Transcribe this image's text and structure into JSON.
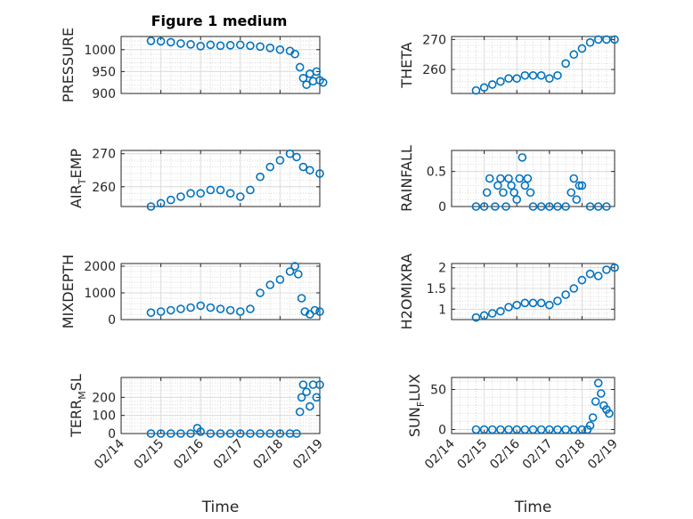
{
  "figure": {
    "title": "Figure 1 medium",
    "marker_color": "#0072BD"
  },
  "chart_data": [
    {
      "type": "scatter",
      "ylabel": "PRESSURE",
      "ylim": [
        900,
        1030
      ],
      "yticks": [
        900,
        950,
        1000
      ],
      "xlim": [
        "02/14",
        "02/19"
      ],
      "xticks": [],
      "series": [
        {
          "points": [
            [
              "02/14 18:00",
              1020
            ],
            [
              "02/15 00:00",
              1019
            ],
            [
              "02/15 06:00",
              1017
            ],
            [
              "02/15 12:00",
              1014
            ],
            [
              "02/15 18:00",
              1012
            ],
            [
              "02/16 00:00",
              1008
            ],
            [
              "02/16 06:00",
              1011
            ],
            [
              "02/16 12:00",
              1009
            ],
            [
              "02/16 18:00",
              1010
            ],
            [
              "02/17 00:00",
              1011
            ],
            [
              "02/17 06:00",
              1009
            ],
            [
              "02/17 12:00",
              1007
            ],
            [
              "02/17 18:00",
              1004
            ],
            [
              "02/18 00:00",
              1000
            ],
            [
              "02/18 06:00",
              997
            ],
            [
              "02/18 09:00",
              990
            ],
            [
              "02/18 12:00",
              960
            ],
            [
              "02/18 14:00",
              935
            ],
            [
              "02/18 16:00",
              920
            ],
            [
              "02/18 18:00",
              945
            ],
            [
              "02/18 20:00",
              928
            ],
            [
              "02/18 22:00",
              950
            ],
            [
              "02/19 00:00",
              930
            ],
            [
              "02/19 02:00",
              925
            ]
          ]
        }
      ]
    },
    {
      "type": "scatter",
      "ylabel": "THETA",
      "ylim": [
        252,
        271
      ],
      "yticks": [
        260,
        270
      ],
      "xlim": [
        "02/14",
        "02/19"
      ],
      "xticks": [],
      "series": [
        {
          "points": [
            [
              "02/14 18:00",
              253
            ],
            [
              "02/15 00:00",
              254
            ],
            [
              "02/15 06:00",
              255
            ],
            [
              "02/15 12:00",
              256
            ],
            [
              "02/15 18:00",
              257
            ],
            [
              "02/16 00:00",
              257
            ],
            [
              "02/16 06:00",
              258
            ],
            [
              "02/16 12:00",
              258
            ],
            [
              "02/16 18:00",
              258
            ],
            [
              "02/17 00:00",
              257
            ],
            [
              "02/17 06:00",
              258
            ],
            [
              "02/17 12:00",
              262
            ],
            [
              "02/17 18:00",
              265
            ],
            [
              "02/18 00:00",
              267
            ],
            [
              "02/18 06:00",
              269
            ],
            [
              "02/18 12:00",
              270
            ],
            [
              "02/18 18:00",
              270
            ],
            [
              "02/19 00:00",
              270
            ]
          ]
        }
      ]
    },
    {
      "type": "scatter",
      "ylabel": "AIR",
      "ylabel_sub": "T",
      "ylabel_tail": "EMP",
      "ylim": [
        254,
        271
      ],
      "yticks": [
        260,
        270
      ],
      "xlim": [
        "02/14",
        "02/19"
      ],
      "xticks": [],
      "series": [
        {
          "points": [
            [
              "02/14 18:00",
              254
            ],
            [
              "02/15 00:00",
              255
            ],
            [
              "02/15 06:00",
              256
            ],
            [
              "02/15 12:00",
              257
            ],
            [
              "02/15 18:00",
              258
            ],
            [
              "02/16 00:00",
              258
            ],
            [
              "02/16 06:00",
              259
            ],
            [
              "02/16 12:00",
              259
            ],
            [
              "02/16 18:00",
              258
            ],
            [
              "02/17 00:00",
              257
            ],
            [
              "02/17 06:00",
              259
            ],
            [
              "02/17 12:00",
              263
            ],
            [
              "02/17 18:00",
              266
            ],
            [
              "02/18 00:00",
              268
            ],
            [
              "02/18 06:00",
              270
            ],
            [
              "02/18 10:00",
              269
            ],
            [
              "02/18 14:00",
              266
            ],
            [
              "02/18 18:00",
              265
            ],
            [
              "02/19 00:00",
              264
            ]
          ]
        }
      ]
    },
    {
      "type": "scatter",
      "ylabel": "RAINFALL",
      "ylim": [
        0,
        0.8
      ],
      "yticks": [
        0,
        0.5
      ],
      "xlim": [
        "02/14",
        "02/19"
      ],
      "xticks": [],
      "series": [
        {
          "points": [
            [
              "02/14 18:00",
              0
            ],
            [
              "02/15 00:00",
              0
            ],
            [
              "02/15 02:00",
              0.2
            ],
            [
              "02/15 04:00",
              0.4
            ],
            [
              "02/15 08:00",
              0
            ],
            [
              "02/15 10:00",
              0.3
            ],
            [
              "02/15 12:00",
              0.4
            ],
            [
              "02/15 14:00",
              0.2
            ],
            [
              "02/15 16:00",
              0
            ],
            [
              "02/15 18:00",
              0.4
            ],
            [
              "02/15 20:00",
              0.3
            ],
            [
              "02/15 22:00",
              0.2
            ],
            [
              "02/16 00:00",
              0.1
            ],
            [
              "02/16 02:00",
              0.4
            ],
            [
              "02/16 04:00",
              0.7
            ],
            [
              "02/16 06:00",
              0.3
            ],
            [
              "02/16 08:00",
              0.4
            ],
            [
              "02/16 10:00",
              0.2
            ],
            [
              "02/16 12:00",
              0
            ],
            [
              "02/16 18:00",
              0
            ],
            [
              "02/17 00:00",
              0
            ],
            [
              "02/17 06:00",
              0
            ],
            [
              "02/17 12:00",
              0
            ],
            [
              "02/17 16:00",
              0.2
            ],
            [
              "02/17 18:00",
              0.4
            ],
            [
              "02/17 20:00",
              0.1
            ],
            [
              "02/17 22:00",
              0.3
            ],
            [
              "02/18 00:00",
              0.3
            ],
            [
              "02/18 06:00",
              0
            ],
            [
              "02/18 12:00",
              0
            ],
            [
              "02/18 18:00",
              0
            ]
          ]
        }
      ]
    },
    {
      "type": "scatter",
      "ylabel": "MIXDEPTH",
      "ylim": [
        0,
        2100
      ],
      "yticks": [
        0,
        1000,
        2000
      ],
      "xlim": [
        "02/14",
        "02/19"
      ],
      "xticks": [],
      "series": [
        {
          "points": [
            [
              "02/14 18:00",
              260
            ],
            [
              "02/15 00:00",
              300
            ],
            [
              "02/15 06:00",
              350
            ],
            [
              "02/15 12:00",
              400
            ],
            [
              "02/15 18:00",
              450
            ],
            [
              "02/16 00:00",
              520
            ],
            [
              "02/16 06:00",
              450
            ],
            [
              "02/16 12:00",
              400
            ],
            [
              "02/16 18:00",
              350
            ],
            [
              "02/17 00:00",
              300
            ],
            [
              "02/17 06:00",
              400
            ],
            [
              "02/17 12:00",
              1000
            ],
            [
              "02/17 18:00",
              1300
            ],
            [
              "02/18 00:00",
              1500
            ],
            [
              "02/18 06:00",
              1800
            ],
            [
              "02/18 09:00",
              2000
            ],
            [
              "02/18 11:00",
              1700
            ],
            [
              "02/18 13:00",
              800
            ],
            [
              "02/18 15:00",
              300
            ],
            [
              "02/18 18:00",
              200
            ],
            [
              "02/18 21:00",
              350
            ],
            [
              "02/19 00:00",
              300
            ]
          ]
        }
      ]
    },
    {
      "type": "scatter",
      "ylabel": "H2OMIXRA",
      "ylim": [
        0.75,
        2.1
      ],
      "yticks": [
        1,
        1.5,
        2
      ],
      "xlim": [
        "02/14",
        "02/19"
      ],
      "xticks": [],
      "series": [
        {
          "points": [
            [
              "02/14 18:00",
              0.8
            ],
            [
              "02/15 00:00",
              0.85
            ],
            [
              "02/15 06:00",
              0.9
            ],
            [
              "02/15 12:00",
              0.95
            ],
            [
              "02/15 18:00",
              1.05
            ],
            [
              "02/16 00:00",
              1.1
            ],
            [
              "02/16 06:00",
              1.15
            ],
            [
              "02/16 12:00",
              1.15
            ],
            [
              "02/16 18:00",
              1.15
            ],
            [
              "02/17 00:00",
              1.1
            ],
            [
              "02/17 06:00",
              1.2
            ],
            [
              "02/17 12:00",
              1.35
            ],
            [
              "02/17 18:00",
              1.5
            ],
            [
              "02/18 00:00",
              1.7
            ],
            [
              "02/18 06:00",
              1.85
            ],
            [
              "02/18 12:00",
              1.8
            ],
            [
              "02/18 18:00",
              1.95
            ],
            [
              "02/19 00:00",
              2.0
            ]
          ]
        }
      ]
    },
    {
      "type": "scatter",
      "ylabel": "TERR",
      "ylabel_sub": "M",
      "ylabel_tail": "SL",
      "ylim": [
        0,
        310
      ],
      "yticks": [
        0,
        100,
        200
      ],
      "xlim": [
        "02/14",
        "02/19"
      ],
      "xticks": [
        "02/14",
        "02/15",
        "02/16",
        "02/17",
        "02/18",
        "02/19"
      ],
      "xlabel": "Time",
      "series": [
        {
          "points": [
            [
              "02/14 18:00",
              0
            ],
            [
              "02/15 00:00",
              0
            ],
            [
              "02/15 06:00",
              0
            ],
            [
              "02/15 12:00",
              0
            ],
            [
              "02/15 18:00",
              0
            ],
            [
              "02/15 22:00",
              30
            ],
            [
              "02/16 00:00",
              10
            ],
            [
              "02/16 06:00",
              0
            ],
            [
              "02/16 12:00",
              0
            ],
            [
              "02/16 18:00",
              0
            ],
            [
              "02/17 00:00",
              0
            ],
            [
              "02/17 06:00",
              0
            ],
            [
              "02/17 12:00",
              0
            ],
            [
              "02/17 18:00",
              0
            ],
            [
              "02/18 00:00",
              0
            ],
            [
              "02/18 06:00",
              0
            ],
            [
              "02/18 10:00",
              0
            ],
            [
              "02/18 12:00",
              120
            ],
            [
              "02/18 13:00",
              200
            ],
            [
              "02/18 14:00",
              270
            ],
            [
              "02/18 16:00",
              230
            ],
            [
              "02/18 18:00",
              150
            ],
            [
              "02/18 20:00",
              270
            ],
            [
              "02/18 22:00",
              200
            ],
            [
              "02/19 00:00",
              270
            ]
          ]
        }
      ]
    },
    {
      "type": "scatter",
      "ylabel": "SUN",
      "ylabel_sub": "F",
      "ylabel_tail": "LUX",
      "ylim": [
        -5,
        65
      ],
      "yticks": [
        0,
        50
      ],
      "xlim": [
        "02/14",
        "02/19"
      ],
      "xticks": [
        "02/14",
        "02/15",
        "02/16",
        "02/17",
        "02/18",
        "02/19"
      ],
      "xlabel": "Time",
      "series": [
        {
          "points": [
            [
              "02/14 18:00",
              0
            ],
            [
              "02/15 00:00",
              0
            ],
            [
              "02/15 06:00",
              0
            ],
            [
              "02/15 12:00",
              0
            ],
            [
              "02/15 18:00",
              0
            ],
            [
              "02/16 00:00",
              0
            ],
            [
              "02/16 06:00",
              0
            ],
            [
              "02/16 12:00",
              0
            ],
            [
              "02/16 18:00",
              0
            ],
            [
              "02/17 00:00",
              0
            ],
            [
              "02/17 06:00",
              0
            ],
            [
              "02/17 12:00",
              0
            ],
            [
              "02/17 18:00",
              0
            ],
            [
              "02/18 00:00",
              0
            ],
            [
              "02/18 04:00",
              0
            ],
            [
              "02/18 06:00",
              5
            ],
            [
              "02/18 08:00",
              15
            ],
            [
              "02/18 10:00",
              35
            ],
            [
              "02/18 12:00",
              58
            ],
            [
              "02/18 14:00",
              45
            ],
            [
              "02/18 16:00",
              30
            ],
            [
              "02/18 18:00",
              25
            ],
            [
              "02/18 20:00",
              20
            ]
          ]
        }
      ]
    }
  ]
}
